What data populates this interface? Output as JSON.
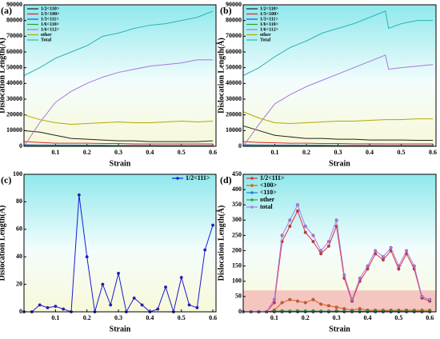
{
  "chart_data": [
    {
      "type": "line",
      "label": "(a)",
      "xlabel": "Strain",
      "ylabel": "Dislocation Length(Å)",
      "xlim": [
        0,
        0.61
      ],
      "xticks": [
        0.1,
        0.2,
        0.3,
        0.4,
        0.5,
        0.6
      ],
      "ylim": [
        0,
        90000
      ],
      "yticks": [
        0,
        10000,
        20000,
        30000,
        40000,
        50000,
        60000,
        70000,
        80000,
        90000
      ],
      "legend": "upper left",
      "markers": false,
      "x": [
        0,
        0.05,
        0.1,
        0.15,
        0.2,
        0.25,
        0.3,
        0.35,
        0.4,
        0.45,
        0.5,
        0.55,
        0.6
      ],
      "series": [
        {
          "name": "1/2<110>",
          "color": "#222222",
          "values": [
            10000,
            9000,
            7000,
            5000,
            4500,
            4000,
            3500,
            3500,
            3000,
            3000,
            3000,
            3000,
            3500
          ]
        },
        {
          "name": "1/3<100>",
          "color": "#d62728",
          "values": [
            3000,
            2500,
            2000,
            2000,
            2000,
            1800,
            1800,
            1500,
            1500,
            1500,
            1500,
            1500,
            1500
          ]
        },
        {
          "name": "1/3<111>",
          "color": "#1f4fd6",
          "values": [
            1000,
            900,
            800,
            800,
            700,
            700,
            600,
            600,
            600,
            500,
            500,
            500,
            500
          ]
        },
        {
          "name": "1/6<110>",
          "color": "#2ca02c",
          "values": [
            500,
            400,
            400,
            300,
            300,
            300,
            300,
            200,
            200,
            200,
            200,
            200,
            200
          ]
        },
        {
          "name": "1/6<112>",
          "color": "#a875e0",
          "values": [
            0,
            15000,
            28000,
            35000,
            40000,
            44000,
            47000,
            49000,
            51000,
            52000,
            53000,
            55000,
            55000
          ]
        },
        {
          "name": "other",
          "color": "#b5a800",
          "values": [
            20000,
            17000,
            15000,
            14000,
            14500,
            15000,
            15500,
            15000,
            15000,
            15500,
            16000,
            15500,
            16000
          ]
        },
        {
          "name": "Total",
          "color": "#2bb5b5",
          "values": [
            45000,
            50000,
            56000,
            60000,
            64000,
            70000,
            72000,
            75000,
            77000,
            78000,
            80000,
            82000,
            86000
          ]
        }
      ]
    },
    {
      "type": "line",
      "label": "(b)",
      "xlabel": "Strain",
      "ylabel": "Dislocation Length(Å)",
      "xlim": [
        0,
        0.61
      ],
      "xticks": [
        0.1,
        0.2,
        0.3,
        0.4,
        0.5,
        0.6
      ],
      "ylim": [
        0,
        90000
      ],
      "yticks": [
        0,
        10000,
        20000,
        30000,
        40000,
        50000,
        60000,
        70000,
        80000,
        90000
      ],
      "legend": "upper left",
      "markers": false,
      "x": [
        0,
        0.05,
        0.1,
        0.15,
        0.2,
        0.25,
        0.3,
        0.35,
        0.4,
        0.45,
        0.46,
        0.5,
        0.55,
        0.6
      ],
      "series": [
        {
          "name": "1/2<110>",
          "color": "#222222",
          "values": [
            13000,
            10000,
            7000,
            6000,
            5000,
            5000,
            4500,
            4500,
            4000,
            4000,
            4000,
            4000,
            3800,
            3800
          ]
        },
        {
          "name": "1/3<100>",
          "color": "#d62728",
          "values": [
            3000,
            2500,
            2200,
            2000,
            2000,
            1800,
            1800,
            1600,
            1600,
            1500,
            1500,
            1500,
            1500,
            1500
          ]
        },
        {
          "name": "1/3<111>",
          "color": "#1f4fd6",
          "values": [
            1000,
            900,
            800,
            800,
            700,
            700,
            600,
            600,
            600,
            500,
            500,
            500,
            500,
            500
          ]
        },
        {
          "name": "1/6<110>",
          "color": "#2ca02c",
          "values": [
            500,
            400,
            400,
            300,
            300,
            300,
            300,
            200,
            200,
            200,
            200,
            200,
            200,
            200
          ]
        },
        {
          "name": "1/6<112>",
          "color": "#a875e0",
          "values": [
            0,
            14000,
            27000,
            33000,
            38000,
            42000,
            46000,
            50000,
            54000,
            58000,
            49000,
            50000,
            51000,
            52000
          ]
        },
        {
          "name": "other",
          "color": "#b5a800",
          "values": [
            22000,
            18000,
            15000,
            14500,
            15000,
            15500,
            16000,
            16000,
            16500,
            17000,
            17000,
            17000,
            17500,
            17500
          ]
        },
        {
          "name": "Total",
          "color": "#2bb5b5",
          "values": [
            45000,
            50000,
            57000,
            63000,
            67000,
            72000,
            75000,
            78000,
            82000,
            86000,
            75000,
            78000,
            80000,
            80000
          ]
        }
      ]
    },
    {
      "type": "line",
      "label": "(c)",
      "xlabel": "Strain",
      "ylabel": "Dislocation Length(Å)",
      "xlim": [
        0,
        0.61
      ],
      "xticks": [
        0.1,
        0.2,
        0.3,
        0.4,
        0.5,
        0.6
      ],
      "ylim": [
        0,
        100
      ],
      "yticks": [
        0,
        20,
        40,
        60,
        80,
        100
      ],
      "legend": "upper right",
      "markers": true,
      "x": [
        0,
        0.025,
        0.05,
        0.075,
        0.1,
        0.125,
        0.15,
        0.175,
        0.2,
        0.225,
        0.25,
        0.275,
        0.3,
        0.325,
        0.35,
        0.375,
        0.4,
        0.425,
        0.45,
        0.475,
        0.5,
        0.525,
        0.55,
        0.575,
        0.6
      ],
      "series": [
        {
          "name": "1/2<111>",
          "color": "#1a1ad6",
          "values": [
            0,
            0,
            5,
            3,
            4,
            2,
            0,
            85,
            40,
            0,
            20,
            5,
            28,
            0,
            10,
            5,
            0,
            2,
            18,
            0,
            25,
            5,
            3,
            45,
            63
          ]
        }
      ]
    },
    {
      "type": "line",
      "label": "(d)",
      "xlabel": "Strain",
      "ylabel": "Dislocation Length(Å)",
      "xlim": [
        0,
        0.62
      ],
      "xticks": [
        0.1,
        0.2,
        0.3,
        0.4,
        0.5,
        0.6
      ],
      "ylim": [
        0,
        450
      ],
      "yticks": [
        0,
        50,
        100,
        150,
        200,
        250,
        300,
        350,
        400,
        450
      ],
      "shaded_range": [
        0,
        70
      ],
      "legend": "upper left",
      "markers": true,
      "x": [
        0,
        0.025,
        0.05,
        0.075,
        0.1,
        0.125,
        0.15,
        0.175,
        0.2,
        0.225,
        0.25,
        0.275,
        0.3,
        0.325,
        0.35,
        0.375,
        0.4,
        0.425,
        0.45,
        0.475,
        0.5,
        0.525,
        0.55,
        0.575,
        0.6
      ],
      "series": [
        {
          "name": "1/2<111>",
          "color": "#e0303a",
          "values": [
            0,
            0,
            0,
            0,
            30,
            230,
            280,
            330,
            260,
            230,
            190,
            215,
            280,
            110,
            35,
            100,
            140,
            190,
            170,
            200,
            140,
            190,
            140,
            45,
            35
          ]
        },
        {
          "name": "<100>",
          "color": "#e05a1a",
          "values": [
            0,
            0,
            0,
            0,
            5,
            30,
            40,
            35,
            30,
            40,
            25,
            20,
            15,
            10,
            5,
            10,
            5,
            5,
            5,
            5,
            5,
            5,
            5,
            5,
            5
          ]
        },
        {
          "name": "<110>",
          "color": "#1f7fd6",
          "values": [
            0,
            0,
            0,
            0,
            0,
            0,
            0,
            0,
            0,
            0,
            0,
            0,
            3,
            0,
            0,
            0,
            0,
            0,
            0,
            0,
            0,
            0,
            0,
            0,
            0
          ]
        },
        {
          "name": "other",
          "color": "#2ca05a",
          "values": [
            0,
            0,
            0,
            0,
            2,
            3,
            2,
            3,
            2,
            3,
            2,
            2,
            2,
            2,
            1,
            2,
            2,
            2,
            2,
            2,
            2,
            2,
            2,
            1,
            1
          ]
        },
        {
          "name": "total",
          "color": "#b07ae8",
          "values": [
            0,
            0,
            0,
            0,
            40,
            250,
            300,
            350,
            280,
            250,
            200,
            230,
            300,
            120,
            40,
            110,
            150,
            200,
            180,
            210,
            150,
            200,
            150,
            50,
            40
          ]
        }
      ]
    }
  ]
}
